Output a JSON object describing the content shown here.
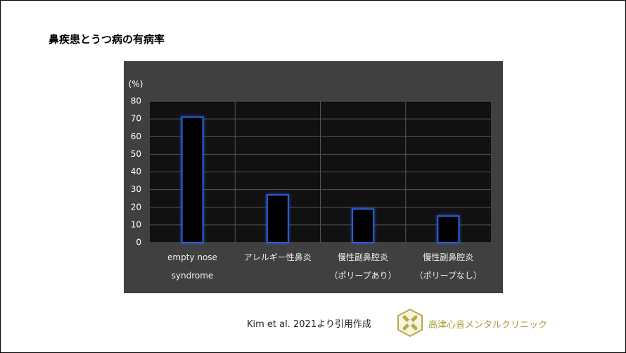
{
  "chart_data": {
    "type": "bar",
    "title": "鼻疾患とうつ病の有病率",
    "ylabel": "(%)",
    "categories": [
      "empty nose\nsyndrome",
      "アレルギー性鼻炎",
      "慢性副鼻腔炎\n（ポリープあり）",
      "慢性副鼻腔炎\n（ポリープなし）"
    ],
    "values": [
      71,
      27,
      19,
      15
    ],
    "color": "#2f5fd8",
    "ylim": [
      0,
      80
    ],
    "yticks": [
      0,
      10,
      20,
      30,
      40,
      50,
      60,
      70,
      80
    ],
    "grid": true
  },
  "source": "Kim et al. 2021より引用作成",
  "clinic": "高津心音メンタルクリニック"
}
